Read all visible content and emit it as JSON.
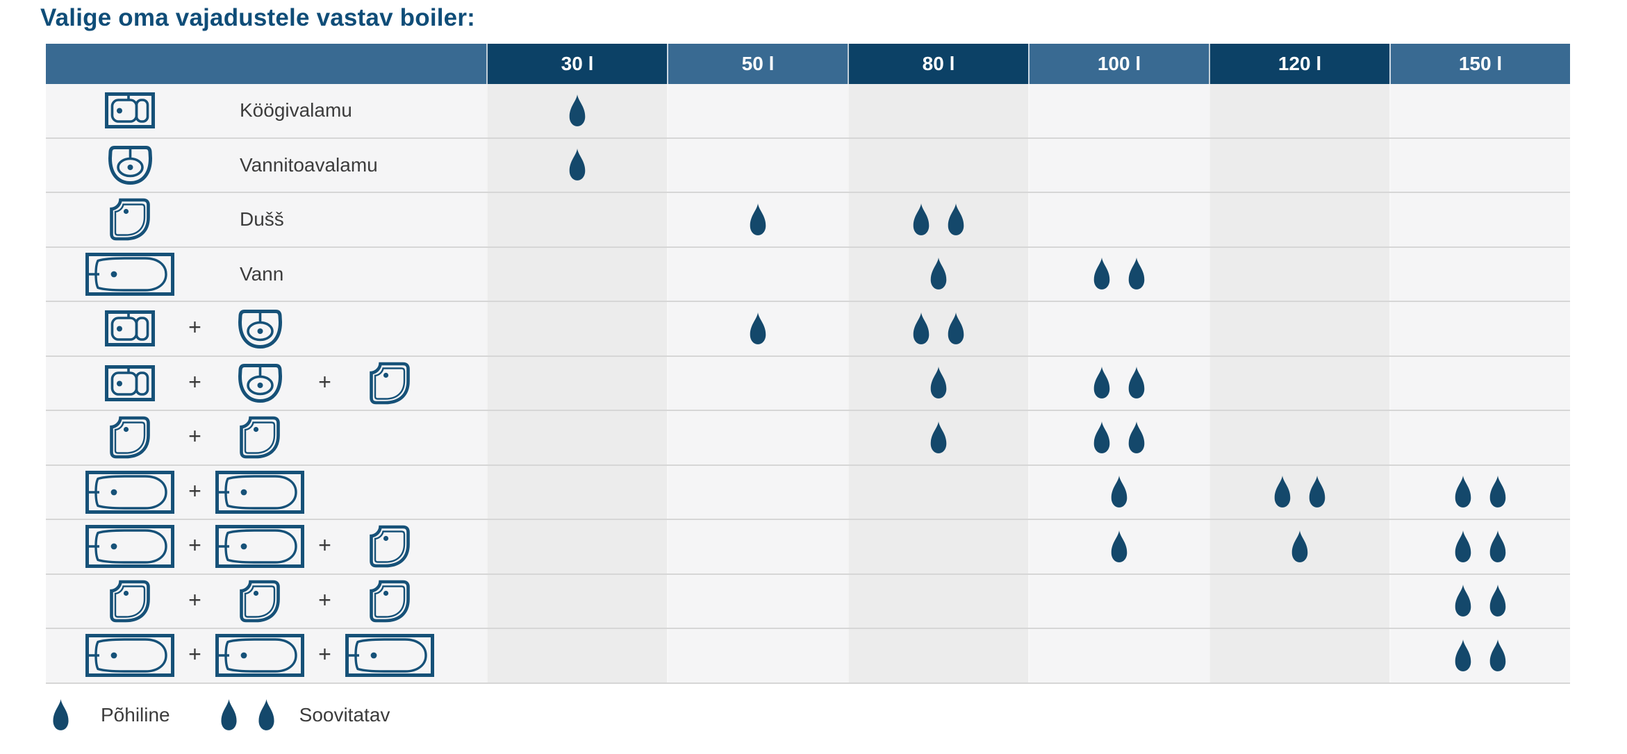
{
  "title": "Valige oma vajadustele vastav boiler:",
  "table": {
    "capacity_columns": [
      "30 l",
      "50 l",
      "80 l",
      "100 l",
      "120 l",
      "150 l"
    ],
    "plus_separator": "+",
    "rows": [
      {
        "fixtures": [
          "kitchen-sink"
        ],
        "label": "Köögivalamu",
        "drops": [
          1,
          0,
          0,
          0,
          0,
          0
        ]
      },
      {
        "fixtures": [
          "washbasin"
        ],
        "label": "Vannitoavalamu",
        "drops": [
          1,
          0,
          0,
          0,
          0,
          0
        ]
      },
      {
        "fixtures": [
          "shower"
        ],
        "label": "Dušš",
        "drops": [
          0,
          1,
          2,
          0,
          0,
          0
        ]
      },
      {
        "fixtures": [
          "bathtub"
        ],
        "label": "Vann",
        "drops": [
          0,
          0,
          1,
          2,
          0,
          0
        ]
      },
      {
        "fixtures": [
          "kitchen-sink",
          "washbasin"
        ],
        "label": "",
        "drops": [
          0,
          1,
          2,
          0,
          0,
          0
        ]
      },
      {
        "fixtures": [
          "kitchen-sink",
          "washbasin",
          "shower"
        ],
        "label": "",
        "drops": [
          0,
          0,
          1,
          2,
          0,
          0
        ]
      },
      {
        "fixtures": [
          "shower",
          "shower"
        ],
        "label": "",
        "drops": [
          0,
          0,
          1,
          2,
          0,
          0
        ]
      },
      {
        "fixtures": [
          "bathtub",
          "bathtub"
        ],
        "label": "",
        "drops": [
          0,
          0,
          0,
          1,
          2,
          2
        ]
      },
      {
        "fixtures": [
          "bathtub",
          "bathtub",
          "shower"
        ],
        "label": "",
        "drops": [
          0,
          0,
          0,
          1,
          1,
          2
        ]
      },
      {
        "fixtures": [
          "shower",
          "shower",
          "shower"
        ],
        "label": "",
        "drops": [
          0,
          0,
          0,
          0,
          0,
          2
        ]
      },
      {
        "fixtures": [
          "bathtub",
          "bathtub",
          "bathtub"
        ],
        "label": "",
        "drops": [
          0,
          0,
          0,
          0,
          0,
          2
        ]
      }
    ]
  },
  "legend": {
    "primary": {
      "drop_count": 1,
      "label": "Põhiline"
    },
    "recommended": {
      "drop_count": 2,
      "label": "Soovitatav"
    }
  },
  "colors": {
    "title_text": "#0f4d78",
    "header_dark": "#0c4166",
    "header_medium": "#396a92",
    "column_shaded": "#ececec",
    "column_light": "#f5f5f6",
    "separator": "#d6d6d6",
    "drop": "#14486b",
    "icon_stroke": "#165178",
    "body_text": "#3c3c3c"
  },
  "chart_data": {
    "type": "table",
    "title": "Valige oma vajadustele vastav boiler:",
    "columns": [
      "30 l",
      "50 l",
      "80 l",
      "100 l",
      "120 l",
      "150 l"
    ],
    "row_labels": [
      "Köögivalamu",
      "Vannitoavalamu",
      "Dušš",
      "Vann",
      "Köögivalamu + Vannitoavalamu",
      "Köögivalamu + Vannitoavalamu + Dušš",
      "Dušš + Dušš",
      "Vann + Vann",
      "Vann + Vann + Dušš",
      "Dušš + Dušš + Dušš",
      "Vann + Vann + Vann"
    ],
    "values": [
      [
        1,
        0,
        0,
        0,
        0,
        0
      ],
      [
        1,
        0,
        0,
        0,
        0,
        0
      ],
      [
        0,
        1,
        2,
        0,
        0,
        0
      ],
      [
        0,
        0,
        1,
        2,
        0,
        0
      ],
      [
        0,
        1,
        2,
        0,
        0,
        0
      ],
      [
        0,
        0,
        1,
        2,
        0,
        0
      ],
      [
        0,
        0,
        1,
        2,
        0,
        0
      ],
      [
        0,
        0,
        0,
        1,
        2,
        2
      ],
      [
        0,
        0,
        0,
        1,
        1,
        2
      ],
      [
        0,
        0,
        0,
        0,
        0,
        2
      ],
      [
        0,
        0,
        0,
        0,
        0,
        2
      ]
    ],
    "value_meaning": {
      "0": "",
      "1": "Põhiline",
      "2": "Soovitatav"
    },
    "legend_position": "bottom-left",
    "grid": "row-separators"
  }
}
